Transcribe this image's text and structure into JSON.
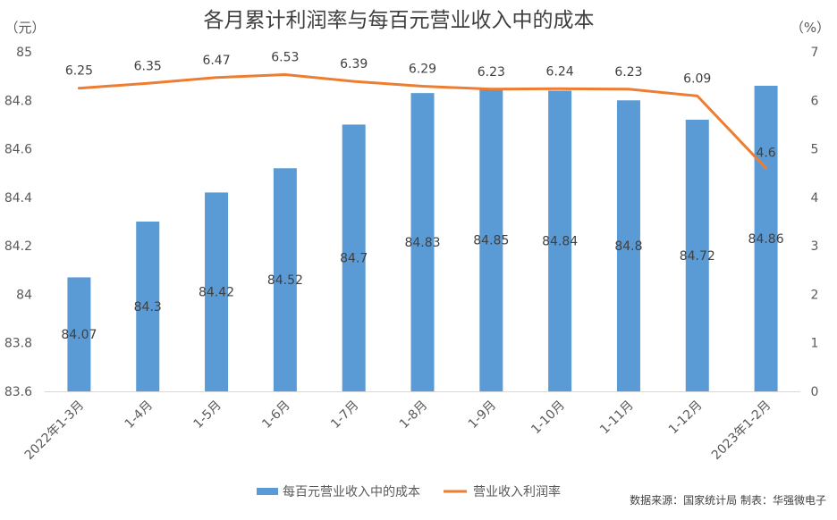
{
  "chart_data": {
    "type": "bar",
    "title": "各月累计利润率与每百元营业收入中的成本",
    "categories": [
      "2022年1-3月",
      "1-4月",
      "1-5月",
      "1-6月",
      "1-7月",
      "1-8月",
      "1-9月",
      "1-10月",
      "1-11月",
      "1-12月",
      "2023年1-2月"
    ],
    "series": [
      {
        "name": "每百元营业收入中的成本",
        "type": "bar",
        "axis": "left",
        "color": "#5B9BD5",
        "values": [
          84.07,
          84.3,
          84.42,
          84.52,
          84.7,
          84.83,
          84.85,
          84.84,
          84.8,
          84.72,
          84.86
        ],
        "labels": [
          "84.07",
          "84.3",
          "84.42",
          "84.52",
          "84.7",
          "84.83",
          "84.85",
          "84.84",
          "84.8",
          "84.72",
          "84.86"
        ]
      },
      {
        "name": "营业收入利润率",
        "type": "line",
        "axis": "right",
        "color": "#ED7D31",
        "values": [
          6.25,
          6.35,
          6.47,
          6.53,
          6.39,
          6.29,
          6.23,
          6.24,
          6.23,
          6.09,
          4.6
        ],
        "labels": [
          "6.25",
          "6.35",
          "6.47",
          "6.53",
          "6.39",
          "6.29",
          "6.23",
          "6.24",
          "6.23",
          "6.09",
          "4.6"
        ]
      }
    ],
    "y_left": {
      "unit_label": "（元）",
      "range": [
        83.6,
        85
      ],
      "ticks": [
        83.6,
        83.8,
        84,
        84.2,
        84.4,
        84.6,
        84.8,
        85
      ],
      "tick_labels": [
        "83.6",
        "83.8",
        "84",
        "84.2",
        "84.4",
        "84.6",
        "84.8",
        "85"
      ]
    },
    "y_right": {
      "unit_label": "（%）",
      "range": [
        0,
        7
      ],
      "ticks": [
        0,
        1,
        2,
        3,
        4,
        5,
        6,
        7
      ],
      "tick_labels": [
        "0",
        "1",
        "2",
        "3",
        "4",
        "5",
        "6",
        "7"
      ]
    },
    "grid": false,
    "legend_position": "bottom",
    "source_note": "数据来源：国家统计局   制表：华强微电子"
  }
}
